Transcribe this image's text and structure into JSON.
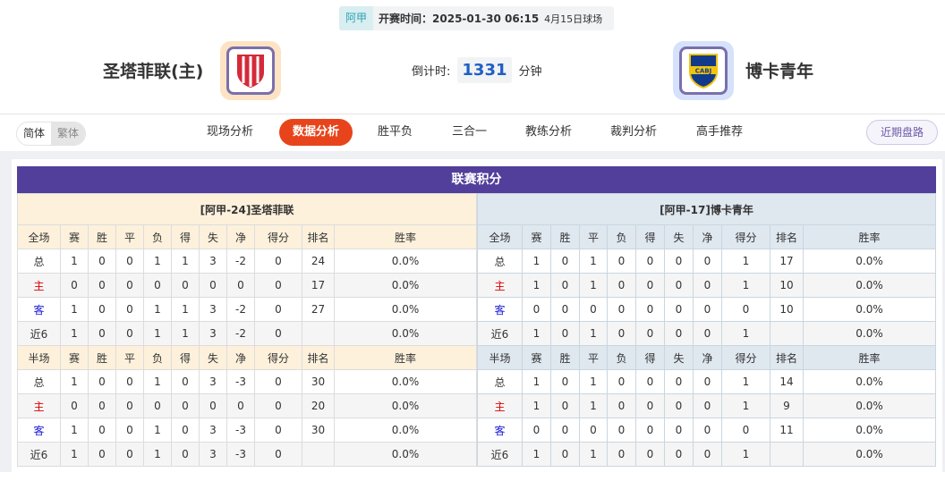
{
  "header": {
    "league": "阿甲",
    "kickoff_label": "开赛时间：",
    "kickoff": "2025-01-30 06:15",
    "venue": "4月15日球场",
    "home_team": "圣塔菲联(主)",
    "away_team": "博卡青年",
    "home_logo_text": "CAU",
    "away_logo_text": "CABJ",
    "countdown_label": "倒计时:",
    "countdown_value": "1331",
    "countdown_unit": "分钟"
  },
  "nav": {
    "lang": [
      "简体",
      "繁体"
    ],
    "tabs": [
      "现场分析",
      "数据分析",
      "胜平负",
      "三合一",
      "教练分析",
      "裁判分析",
      "高手推荐"
    ],
    "active_tab": "数据分析",
    "recent_button": "近期盘路"
  },
  "colors": {
    "title_bar": "#523f9b",
    "active_tab": "#e8441b",
    "home_label": "#e00000",
    "away_label": "#1b1bd6"
  },
  "standings": {
    "title": "联赛积分",
    "home": {
      "caption": "[阿甲-24]圣塔菲联",
      "full_header": [
        "全场",
        "赛",
        "胜",
        "平",
        "负",
        "得",
        "失",
        "净",
        "得分",
        "排名",
        "胜率"
      ],
      "full_rows": [
        [
          "总",
          "1",
          "0",
          "0",
          "1",
          "1",
          "3",
          "-2",
          "0",
          "24",
          "0.0%"
        ],
        [
          "主",
          "0",
          "0",
          "0",
          "0",
          "0",
          "0",
          "0",
          "0",
          "17",
          "0.0%"
        ],
        [
          "客",
          "1",
          "0",
          "0",
          "1",
          "1",
          "3",
          "-2",
          "0",
          "27",
          "0.0%"
        ],
        [
          "近6",
          "1",
          "0",
          "0",
          "1",
          "1",
          "3",
          "-2",
          "0",
          "",
          "0.0%"
        ]
      ],
      "half_header": [
        "半场",
        "赛",
        "胜",
        "平",
        "负",
        "得",
        "失",
        "净",
        "得分",
        "排名",
        "胜率"
      ],
      "half_rows": [
        [
          "总",
          "1",
          "0",
          "0",
          "1",
          "0",
          "3",
          "-3",
          "0",
          "30",
          "0.0%"
        ],
        [
          "主",
          "0",
          "0",
          "0",
          "0",
          "0",
          "0",
          "0",
          "0",
          "20",
          "0.0%"
        ],
        [
          "客",
          "1",
          "0",
          "0",
          "1",
          "0",
          "3",
          "-3",
          "0",
          "30",
          "0.0%"
        ],
        [
          "近6",
          "1",
          "0",
          "0",
          "1",
          "0",
          "3",
          "-3",
          "0",
          "",
          "0.0%"
        ]
      ]
    },
    "away": {
      "caption": "[阿甲-17]博卡青年",
      "full_header": [
        "全场",
        "赛",
        "胜",
        "平",
        "负",
        "得",
        "失",
        "净",
        "得分",
        "排名",
        "胜率"
      ],
      "full_rows": [
        [
          "总",
          "1",
          "0",
          "1",
          "0",
          "0",
          "0",
          "0",
          "1",
          "17",
          "0.0%"
        ],
        [
          "主",
          "1",
          "0",
          "1",
          "0",
          "0",
          "0",
          "0",
          "1",
          "10",
          "0.0%"
        ],
        [
          "客",
          "0",
          "0",
          "0",
          "0",
          "0",
          "0",
          "0",
          "0",
          "10",
          "0.0%"
        ],
        [
          "近6",
          "1",
          "0",
          "1",
          "0",
          "0",
          "0",
          "0",
          "1",
          "",
          "0.0%"
        ]
      ],
      "half_header": [
        "半场",
        "赛",
        "胜",
        "平",
        "负",
        "得",
        "失",
        "净",
        "得分",
        "排名",
        "胜率"
      ],
      "half_rows": [
        [
          "总",
          "1",
          "0",
          "1",
          "0",
          "0",
          "0",
          "0",
          "1",
          "14",
          "0.0%"
        ],
        [
          "主",
          "1",
          "0",
          "1",
          "0",
          "0",
          "0",
          "0",
          "1",
          "9",
          "0.0%"
        ],
        [
          "客",
          "0",
          "0",
          "0",
          "0",
          "0",
          "0",
          "0",
          "0",
          "11",
          "0.0%"
        ],
        [
          "近6",
          "1",
          "0",
          "1",
          "0",
          "0",
          "0",
          "0",
          "1",
          "",
          "0.0%"
        ]
      ]
    }
  }
}
